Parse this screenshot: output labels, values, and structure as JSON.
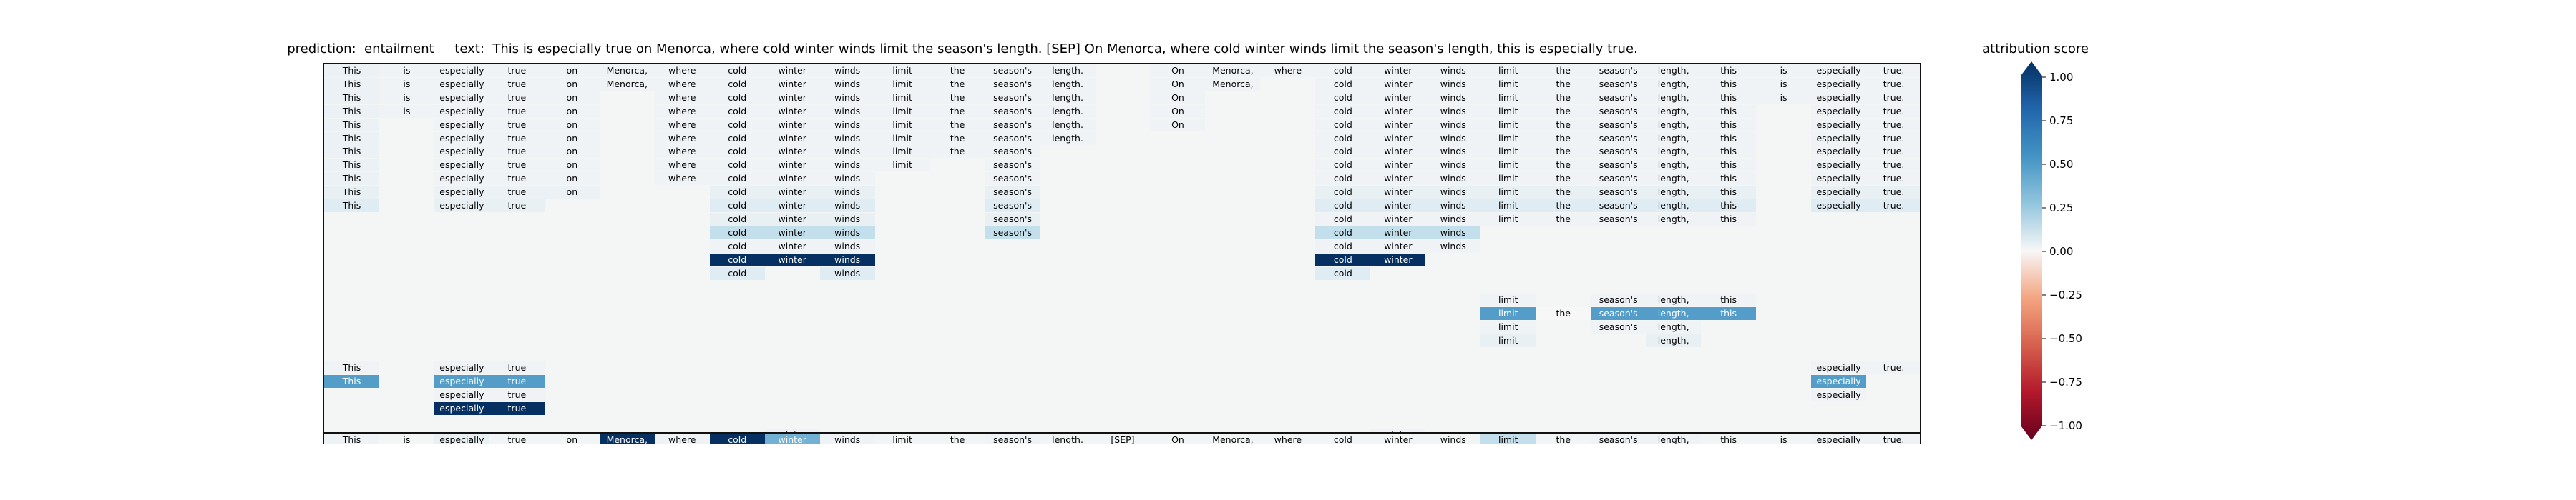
{
  "title": "prediction:  entailment     text:  This is especially true on Menorca, where cold winter winds limit the season's length. [SEP] On Menorca, where cold winter winds limit the season's length, this is especially true.",
  "chart_data": {
    "type": "heatmap",
    "title": "prediction:  entailment     text:  This is especially true on Menorca, where cold winter winds limit the season's length. [SEP] On Menorca, where cold winter winds limit the season's length, this is especially true.",
    "colorbar_label": "attribution score",
    "colorbar_range": [
      -1,
      1
    ],
    "colorbar_ticks": [
      "1.00",
      "0.75",
      "0.50",
      "0.25",
      "0.00",
      "−0.25",
      "−0.50",
      "−0.75",
      "−1.00"
    ],
    "colormap": "RdBu",
    "tokens": [
      "This",
      "is",
      "especially",
      "true",
      "on",
      "Menorca,",
      "where",
      "cold",
      "winter",
      "winds",
      "limit",
      "the",
      "season's",
      "length.",
      "[SEP]",
      "On",
      "Menorca,",
      "where",
      "cold",
      "winter",
      "winds",
      "limit",
      "the",
      "season's",
      "length,",
      "this",
      "is",
      "especially",
      "true."
    ],
    "rows": [
      {
        "0": 0.08,
        "1": 0.05,
        "2": 0.05,
        "3": 0.05,
        "4": 0.05,
        "5": 0.05,
        "6": 0.05,
        "7": 0.05,
        "8": 0.05,
        "9": 0.05,
        "10": 0.05,
        "11": 0.05,
        "12": 0.05,
        "13": 0.05,
        "15": 0.05,
        "16": 0.05,
        "17": 0.05,
        "18": 0.05,
        "19": 0.05,
        "20": 0.05,
        "21": 0.05,
        "22": 0.05,
        "23": 0.05,
        "24": 0.05,
        "25": 0.05,
        "26": 0.05,
        "27": 0.05,
        "28": 0.05
      },
      {
        "0": 0.08,
        "1": 0.05,
        "2": 0.05,
        "3": 0.05,
        "4": 0.05,
        "5": 0.05,
        "6": 0.05,
        "7": 0.05,
        "8": 0.05,
        "9": 0.05,
        "10": 0.05,
        "11": 0.05,
        "12": 0.05,
        "13": 0.05,
        "15": 0.05,
        "16": 0.05,
        "18": 0.05,
        "19": 0.05,
        "20": 0.05,
        "21": 0.05,
        "22": 0.05,
        "23": 0.05,
        "24": 0.05,
        "25": 0.05,
        "26": 0.05,
        "27": 0.05,
        "28": 0.05
      },
      {
        "0": 0.08,
        "1": 0.05,
        "2": 0.05,
        "3": 0.05,
        "4": 0.05,
        "6": 0.05,
        "7": 0.05,
        "8": 0.05,
        "9": 0.05,
        "10": 0.05,
        "11": 0.05,
        "12": 0.05,
        "13": 0.05,
        "15": 0.05,
        "18": 0.05,
        "19": 0.05,
        "20": 0.05,
        "21": 0.05,
        "22": 0.05,
        "23": 0.05,
        "24": 0.05,
        "25": 0.05,
        "26": 0.05,
        "27": 0.05,
        "28": 0.05
      },
      {
        "0": 0.08,
        "1": 0.05,
        "2": 0.05,
        "3": 0.05,
        "4": 0.05,
        "6": 0.05,
        "7": 0.05,
        "8": 0.05,
        "9": 0.05,
        "10": 0.05,
        "11": 0.05,
        "12": 0.05,
        "13": 0.05,
        "15": 0.05,
        "18": 0.05,
        "19": 0.05,
        "20": 0.05,
        "21": 0.05,
        "22": 0.05,
        "23": 0.05,
        "24": 0.05,
        "25": 0.05,
        "27": 0.05,
        "28": 0.05
      },
      {
        "0": 0.08,
        "2": 0.05,
        "3": 0.05,
        "4": 0.05,
        "6": 0.05,
        "7": 0.05,
        "8": 0.05,
        "9": 0.05,
        "10": 0.05,
        "11": 0.05,
        "12": 0.05,
        "13": 0.05,
        "15": 0.05,
        "18": 0.05,
        "19": 0.05,
        "20": 0.05,
        "21": 0.05,
        "22": 0.05,
        "23": 0.05,
        "24": 0.05,
        "25": 0.05,
        "27": 0.05,
        "28": 0.05
      },
      {
        "0": 0.08,
        "2": 0.05,
        "3": 0.05,
        "4": 0.05,
        "6": 0.05,
        "7": 0.05,
        "8": 0.05,
        "9": 0.05,
        "10": 0.05,
        "11": 0.05,
        "12": 0.05,
        "13": 0.05,
        "18": 0.05,
        "19": 0.05,
        "20": 0.05,
        "21": 0.05,
        "22": 0.05,
        "23": 0.05,
        "24": 0.05,
        "25": 0.05,
        "27": 0.05,
        "28": 0.05
      },
      {
        "0": 0.08,
        "2": 0.05,
        "3": 0.05,
        "4": 0.05,
        "6": 0.05,
        "7": 0.05,
        "8": 0.05,
        "9": 0.05,
        "10": 0.05,
        "11": 0.05,
        "12": 0.05,
        "18": 0.05,
        "19": 0.05,
        "20": 0.05,
        "21": 0.05,
        "22": 0.05,
        "23": 0.05,
        "24": 0.05,
        "25": 0.05,
        "27": 0.05,
        "28": 0.05
      },
      {
        "0": 0.08,
        "2": 0.05,
        "3": 0.05,
        "4": 0.05,
        "6": 0.05,
        "7": 0.05,
        "8": 0.05,
        "9": 0.05,
        "10": 0.05,
        "12": 0.05,
        "18": 0.05,
        "19": 0.05,
        "20": 0.05,
        "21": 0.05,
        "22": 0.05,
        "23": 0.05,
        "24": 0.05,
        "25": 0.05,
        "27": 0.05,
        "28": 0.05
      },
      {
        "0": 0.08,
        "2": 0.05,
        "3": 0.05,
        "4": 0.05,
        "6": 0.05,
        "7": 0.05,
        "8": 0.05,
        "9": 0.05,
        "12": 0.05,
        "18": 0.05,
        "19": 0.05,
        "20": 0.05,
        "21": 0.05,
        "22": 0.05,
        "23": 0.05,
        "24": 0.05,
        "25": 0.05,
        "27": 0.05,
        "28": 0.05
      },
      {
        "0": 0.1,
        "2": 0.08,
        "3": 0.08,
        "4": 0.08,
        "7": 0.1,
        "8": 0.1,
        "9": 0.1,
        "12": 0.1,
        "18": 0.1,
        "19": 0.1,
        "20": 0.1,
        "21": 0.1,
        "22": 0.1,
        "23": 0.1,
        "24": 0.1,
        "25": 0.1,
        "27": 0.1,
        "28": 0.1
      },
      {
        "0": 0.15,
        "2": 0.1,
        "3": 0.1,
        "7": 0.15,
        "8": 0.15,
        "9": 0.15,
        "12": 0.15,
        "18": 0.15,
        "19": 0.15,
        "20": 0.15,
        "21": 0.15,
        "22": 0.15,
        "23": 0.15,
        "24": 0.15,
        "25": 0.15,
        "27": 0.15,
        "28": 0.15
      },
      {
        "7": 0.1,
        "8": 0.1,
        "9": 0.1,
        "12": 0.1,
        "18": 0.05,
        "19": 0.05,
        "20": 0.05,
        "21": 0.05,
        "22": 0.05,
        "23": 0.05,
        "24": 0.05,
        "25": 0.05
      },
      {
        "7": 0.3,
        "8": 0.3,
        "9": 0.3,
        "12": 0.3,
        "18": 0.3,
        "19": 0.3,
        "20": 0.3
      },
      {
        "7": 0.05,
        "8": 0.05,
        "9": 0.05,
        "18": 0.05,
        "19": 0.05,
        "20": 0.05
      },
      {
        "7": 1.0,
        "8": 1.0,
        "9": 1.0,
        "18": 1.0,
        "19": 1.0
      },
      {
        "7": 0.15,
        "9": 0.15,
        "18": 0.15
      },
      {},
      {
        "21": 0.05,
        "23": 0.05,
        "24": 0.05,
        "25": 0.05
      },
      {
        "21": 0.7,
        "22": 0.0,
        "23": 0.7,
        "24": 0.7,
        "25": 0.7
      },
      {
        "21": 0.05,
        "23": 0.05,
        "24": 0.05
      },
      {
        "21": 0.1,
        "24": 0.1
      },
      {},
      {
        "0": 0.05,
        "2": 0.05,
        "3": 0.05,
        "27": 0.05,
        "28": 0.05
      },
      {
        "0": 0.7,
        "2": 0.7,
        "3": 0.7,
        "27": 0.7
      },
      {
        "2": 0.05,
        "3": 0.05,
        "27": 0.05
      },
      {
        "2": 1.0,
        "3": 1.0
      },
      {},
      {
        "8": 0.05,
        "19": 0.05
      },
      {
        "7": 0.05,
        "18": 0.05
      },
      {},
      {
        "5": 0.05,
        "16": 0.05
      }
    ],
    "bottom_row": {
      "0": 0.05,
      "1": 0.02,
      "2": 0.1,
      "3": 0.03,
      "4": 0.03,
      "5": 1.0,
      "6": 0.05,
      "7": 1.0,
      "8": 0.6,
      "9": 0.05,
      "10": 0.03,
      "11": 0.03,
      "12": 0.05,
      "13": 0.03,
      "14": 0.03,
      "15": 0.03,
      "16": 0.03,
      "17": 0.03,
      "18": 0.03,
      "19": 0.03,
      "20": 0.03,
      "21": 0.3,
      "22": 0.03,
      "23": 0.05,
      "24": 0.05,
      "25": 0.03,
      "26": 0.03,
      "27": 0.05,
      "28": 0.05
    }
  }
}
